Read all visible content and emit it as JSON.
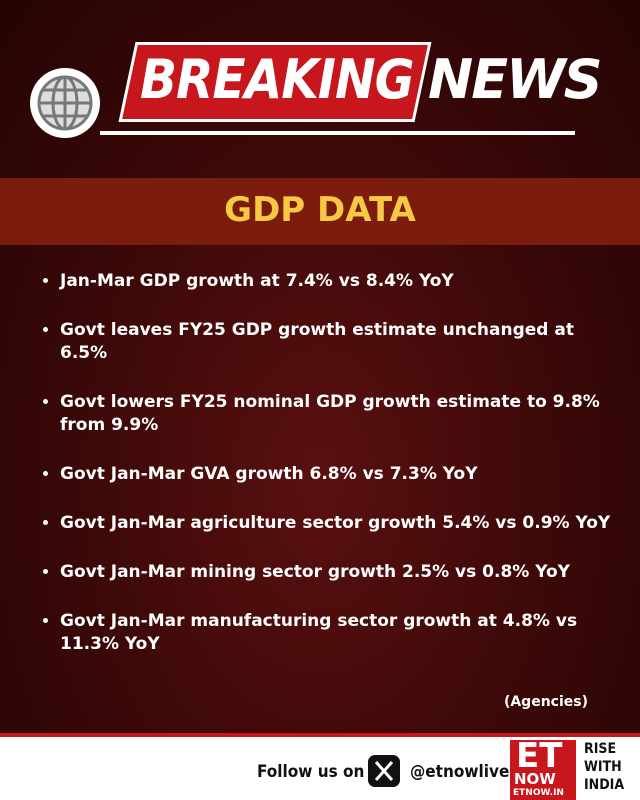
{
  "header": {
    "breaking": "BREAKING",
    "news": "NEWS"
  },
  "section_title": "GDP DATA",
  "bullets": [
    "Jan-Mar GDP growth at 7.4% vs 8.4% YoY",
    "Govt leaves FY25 GDP growth estimate unchanged at 6.5%",
    "Govt lowers FY25 nominal GDP growth estimate to 9.8% from 9.9%",
    "Govt Jan-Mar GVA growth 6.8% vs 7.3% YoY",
    "Govt Jan-Mar agriculture sector growth 5.4% vs 0.9% YoY",
    "Govt Jan-Mar mining sector growth 2.5% vs 0.8% YoY",
    "Govt Jan-Mar manufacturing sector growth at 4.8% vs 11.3% YoY"
  ],
  "source": "(Agencies)",
  "footer": {
    "follow": "Follow us on",
    "handle": "@etnowlive",
    "logo": {
      "et": "ET",
      "now": "NOW",
      "site": "ETNOW.IN"
    },
    "tagline": [
      "RISE",
      "WITH",
      "INDIA"
    ]
  }
}
